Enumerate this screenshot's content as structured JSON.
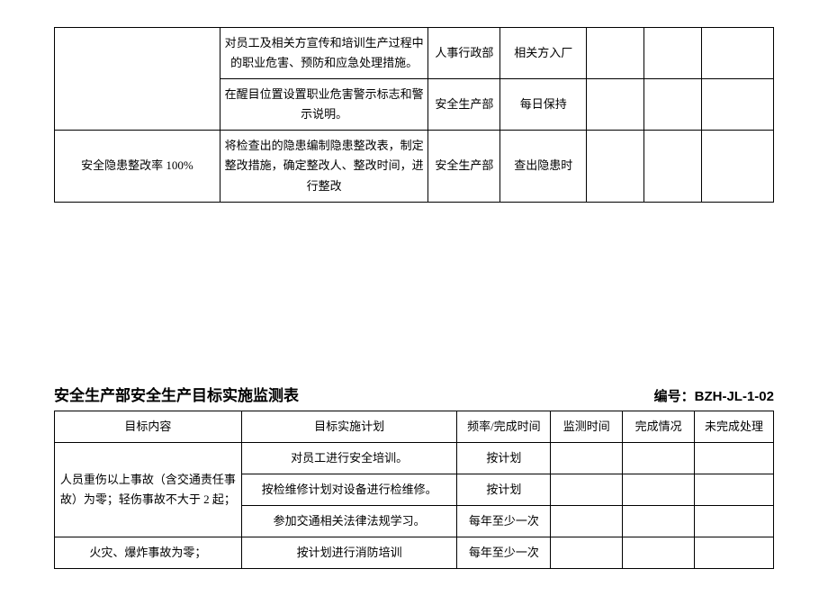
{
  "table1": {
    "rows": [
      {
        "goal": "",
        "plan": "对员工及相关方宣传和培训生产过程中的职业危害、预防和应急处理措施。",
        "dept": "人事行政部",
        "freq": "相关方入厂",
        "mon": "",
        "done": "",
        "undone": ""
      },
      {
        "goal": "",
        "plan": "在醒目位置设置职业危害警示标志和警示说明。",
        "dept": "安全生产部",
        "freq": "每日保持",
        "mon": "",
        "done": "",
        "undone": ""
      },
      {
        "goal": "安全隐患整改率 100%",
        "plan": "将检查出的隐患编制隐患整改表，制定整改措施，确定整改人、整改时间，进行整改",
        "dept": "安全生产部",
        "freq": "查出隐患时",
        "mon": "",
        "done": "",
        "undone": ""
      }
    ]
  },
  "section2": {
    "title": "安全生产部安全生产目标实施监测表",
    "code_label": "编号：BZH-JL-1-02",
    "headers": {
      "goal": "目标内容",
      "plan": "目标实施计划",
      "freq": "频率/完成时间",
      "mon": "监测时间",
      "done": "完成情况",
      "undone": "未完成处理"
    },
    "goal_merged": "人员重伤以上事故（含交通责任事故）为零；轻伤事故不大于 2 起；",
    "rows": [
      {
        "plan": "对员工进行安全培训。",
        "freq": "按计划",
        "mon": "",
        "done": "",
        "undone": ""
      },
      {
        "plan": "按检维修计划对设备进行检维修。",
        "freq": "按计划",
        "mon": "",
        "done": "",
        "undone": ""
      },
      {
        "plan": "参加交通相关法律法规学习。",
        "freq": "每年至少一次",
        "mon": "",
        "done": "",
        "undone": ""
      }
    ],
    "row_last": {
      "goal": "火灾、爆炸事故为零；",
      "plan": "按计划进行消防培训",
      "freq": "每年至少一次",
      "mon": "",
      "done": "",
      "undone": ""
    }
  }
}
